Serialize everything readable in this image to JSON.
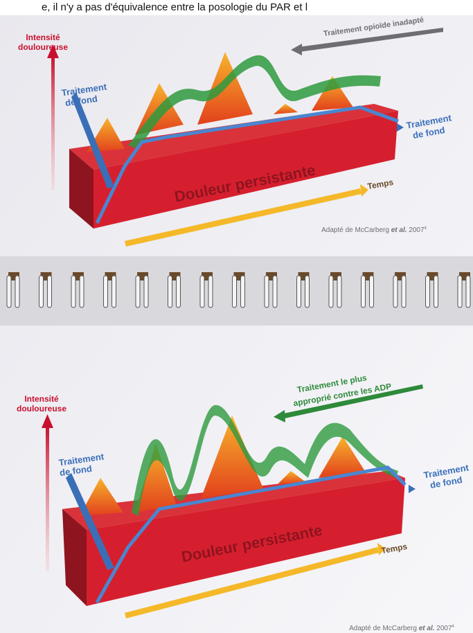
{
  "header": {
    "caption": "e, il n'y a pas d'équivalence entre la posologie du PAR et l"
  },
  "panels": [
    {
      "y_axis_label": [
        "Intensité",
        "douloureuse"
      ],
      "arrow_label": [
        "Traitement opioïde inadapté"
      ],
      "left_label": [
        "Traitement",
        "de fond"
      ],
      "right_label": [
        "Traitement",
        "de fond"
      ],
      "bar_label": "Douleur persistante",
      "time_label": "Temps",
      "source": {
        "prefix": "Adapté de McCarberg",
        "italic": "et al.",
        "year": "2007",
        "note": "4"
      }
    },
    {
      "y_axis_label": [
        "Intensité",
        "douloureuse"
      ],
      "arrow_label": [
        "Traitement le plus",
        "approprié contre les ADP"
      ],
      "left_label": [
        "Traitement",
        "de fond"
      ],
      "right_label": [
        "Traitement",
        "de fond"
      ],
      "bar_label": "Douleur persistante",
      "time_label": "Temps",
      "source": {
        "prefix": "Adapté de McCarberg",
        "italic": "et al.",
        "year": "2007",
        "note": "4"
      }
    }
  ]
}
